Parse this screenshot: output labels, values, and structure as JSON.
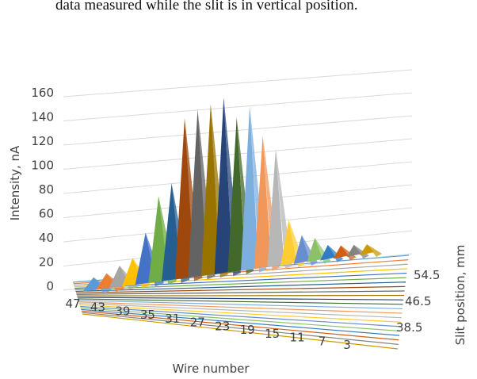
{
  "caption": "data measured while the slit is in vertical position.",
  "chart_data": {
    "type": "3d-area",
    "title": "",
    "zlabel": "Intensity, nA",
    "xlabel": "Wire number",
    "ylabel": "Slit position, mm",
    "zlim": [
      0,
      160
    ],
    "z_ticks": [
      "0",
      "20",
      "40",
      "60",
      "80",
      "100",
      "120",
      "140",
      "160"
    ],
    "x_ticks": [
      "47",
      "43",
      "39",
      "35",
      "31",
      "27",
      "23",
      "19",
      "15",
      "11",
      "7",
      "3"
    ],
    "y_ticks": [
      "38.5",
      "46.5",
      "54.5"
    ],
    "grid": true,
    "peaks": [
      {
        "wire": 47,
        "value": 8,
        "color": "#5b9bd5"
      },
      {
        "wire": 45,
        "value": 10,
        "color": "#ed7d31"
      },
      {
        "wire": 43,
        "value": 15,
        "color": "#a5a5a5"
      },
      {
        "wire": 41,
        "value": 20,
        "color": "#ffc000"
      },
      {
        "wire": 39,
        "value": 40,
        "color": "#4472c4"
      },
      {
        "wire": 37,
        "value": 70,
        "color": "#70ad47"
      },
      {
        "wire": 35,
        "value": 80,
        "color": "#255e91"
      },
      {
        "wire": 33,
        "value": 135,
        "color": "#9e480e"
      },
      {
        "wire": 31,
        "value": 142,
        "color": "#636363"
      },
      {
        "wire": 29,
        "value": 146,
        "color": "#997300"
      },
      {
        "wire": 27,
        "value": 151,
        "color": "#264478"
      },
      {
        "wire": 25,
        "value": 133,
        "color": "#43682b"
      },
      {
        "wire": 23,
        "value": 142,
        "color": "#7cafdd"
      },
      {
        "wire": 21,
        "value": 115,
        "color": "#f1975a"
      },
      {
        "wire": 19,
        "value": 102,
        "color": "#b7b7b7"
      },
      {
        "wire": 17,
        "value": 37,
        "color": "#ffcd33"
      },
      {
        "wire": 15,
        "value": 22,
        "color": "#698ed0"
      },
      {
        "wire": 13,
        "value": 18,
        "color": "#8cc168"
      },
      {
        "wire": 11,
        "value": 10,
        "color": "#327dc2"
      },
      {
        "wire": 9,
        "value": 8,
        "color": "#d26012"
      },
      {
        "wire": 7,
        "value": 7,
        "color": "#848484"
      },
      {
        "wire": 5,
        "value": 6,
        "color": "#cc9a00"
      }
    ]
  }
}
